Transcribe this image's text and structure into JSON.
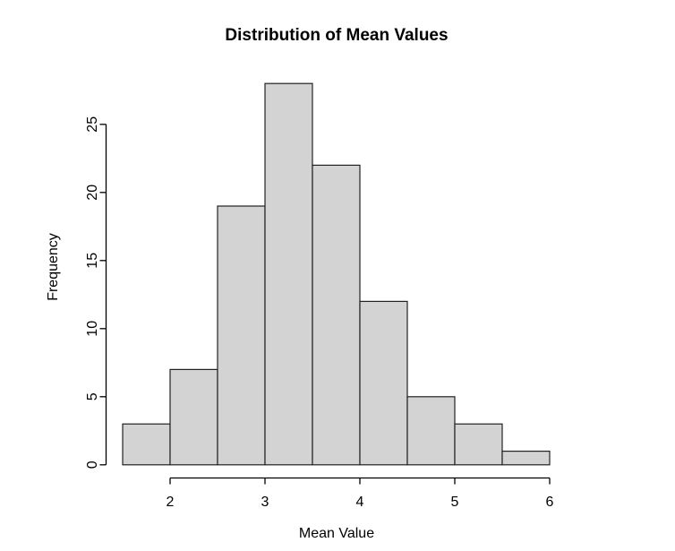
{
  "chart_data": {
    "type": "bar",
    "subtype": "histogram",
    "title": "Distribution of Mean Values",
    "xlabel": "Mean Value",
    "ylabel": "Frequency",
    "bin_edges": [
      1.5,
      2.0,
      2.5,
      3.0,
      3.5,
      4.0,
      4.5,
      5.0,
      5.5,
      6.0
    ],
    "counts": [
      3,
      7,
      19,
      28,
      22,
      12,
      5,
      3,
      1
    ],
    "x_ticks": [
      2,
      3,
      4,
      5,
      6
    ],
    "y_ticks": [
      0,
      5,
      10,
      15,
      20,
      25
    ],
    "xlim": [
      1.5,
      6.0
    ],
    "ylim": [
      0,
      28
    ],
    "grid": false,
    "legend": "none",
    "colors": {
      "bar_fill": "#d3d3d3",
      "bar_stroke": "#222222",
      "axis_stroke": "#000000",
      "background": "#ffffff"
    }
  }
}
